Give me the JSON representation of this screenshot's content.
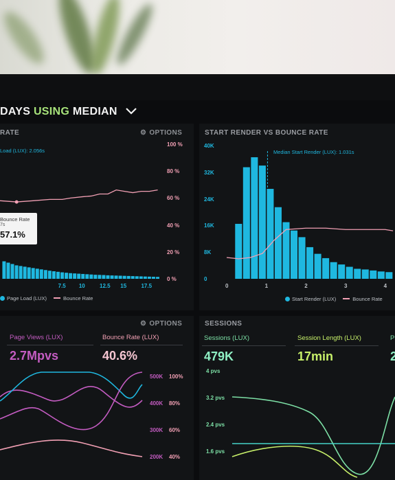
{
  "colors": {
    "blue": "#1fb8e0",
    "pink": "#f2a0b4",
    "purple": "#c45cc2",
    "green": "#7de0a6",
    "lime": "#c7f06a",
    "teal": "#45d4c8"
  },
  "header": {
    "title_part1": "DAYS",
    "title_part2": "USING",
    "title_part3": "MEDIAN",
    "chevron_icon": "chevron-down-icon"
  },
  "panel1": {
    "title": "RATE",
    "options": "OPTIONS",
    "options_icon": "gear-icon",
    "median_label": "Load (LUX): 2.056s",
    "tooltip": {
      "line1": "Bounce Rate",
      "line2": "7s",
      "value": "57.1%"
    },
    "right_axis": [
      "100 %",
      "80 %",
      "60 %",
      "40 %",
      "20 %",
      "0 %"
    ],
    "x_ticks": [
      "7.5",
      "10",
      "12.5",
      "15",
      "17.5"
    ],
    "legend": {
      "series1": "Page Load (LUX)",
      "series2": "Bounce Rate"
    }
  },
  "panel2": {
    "title": "START RENDER VS BOUNCE RATE",
    "median_label": "Median Start Render (LUX): 1.031s",
    "left_axis": [
      "40K",
      "32K",
      "24K",
      "16K",
      "8K",
      "0"
    ],
    "x_ticks": [
      "0",
      "1",
      "2",
      "3",
      "4"
    ],
    "legend": {
      "series1": "Start Render (LUX)",
      "series2": "Bounce Rate"
    }
  },
  "panel3": {
    "options": "OPTIONS",
    "options_icon": "gear-icon",
    "metric1": {
      "label": "Page Views (LUX)",
      "value": "2.7Mpvs"
    },
    "metric2": {
      "label": "Bounce Rate (LUX)",
      "value": "40.6%"
    },
    "axis_a": [
      "500K",
      "400K",
      "300K",
      "200K"
    ],
    "axis_b": [
      "100%",
      "80%",
      "60%",
      "40%"
    ]
  },
  "panel4": {
    "title": "SESSIONS",
    "metric1": {
      "label": "Sessions (LUX)",
      "value": "479K"
    },
    "metric2": {
      "label": "Session Length (LUX)",
      "value": "17min"
    },
    "metric3": {
      "label": "P",
      "value": "2"
    },
    "axis": [
      "4 pvs",
      "3.2 pvs",
      "2.4 pvs",
      "1.6 pvs"
    ]
  },
  "chart_data": [
    {
      "type": "bar",
      "series": [
        {
          "name": "Page Load (LUX)",
          "x": [
            0.5,
            1,
            1.5,
            2,
            2.5,
            3,
            3.5,
            4,
            4.5,
            5,
            5.5,
            6,
            6.5,
            7,
            7.5,
            8,
            8.5,
            9,
            9.5,
            10,
            10.5,
            11,
            11.5,
            12,
            12.5,
            13,
            13.5,
            14,
            14.5,
            15,
            15.5,
            16,
            16.5,
            17,
            17.5,
            18,
            18.5,
            19
          ],
          "values": [
            13,
            12,
            11,
            10,
            9.5,
            9,
            8.5,
            8,
            7.5,
            7,
            6.5,
            6,
            5.6,
            5.2,
            4.8,
            4.5,
            4.2,
            4,
            3.8,
            3.6,
            3.4,
            3.2,
            3,
            2.9,
            2.8,
            2.6,
            2.5,
            2.4,
            2.3,
            2.2,
            2.1,
            2,
            1.9,
            1.8,
            1.7,
            1.6,
            1.5,
            1.4
          ]
        },
        {
          "name": "Bounce Rate",
          "x": [
            0,
            2,
            4,
            6,
            7.5,
            8.5,
            10,
            11,
            12,
            13,
            14,
            15,
            16,
            17,
            18,
            19
          ],
          "values": [
            58,
            57.1,
            58,
            59,
            59,
            60,
            61,
            61.5,
            63,
            63,
            66,
            65,
            64,
            65,
            65,
            66
          ]
        }
      ],
      "ylim": [
        0,
        100
      ],
      "right_axis_unit": "%"
    },
    {
      "type": "bar",
      "series": [
        {
          "name": "Start Render (LUX)",
          "x": [
            0.3,
            0.5,
            0.7,
            0.9,
            1.1,
            1.3,
            1.5,
            1.7,
            1.9,
            2.1,
            2.3,
            2.5,
            2.7,
            2.9,
            3.1,
            3.3,
            3.5,
            3.7,
            3.9,
            4.1
          ],
          "values": [
            16500,
            33500,
            36500,
            34000,
            27000,
            21500,
            17000,
            14500,
            12500,
            9500,
            7500,
            6200,
            5000,
            4300,
            3600,
            3000,
            2800,
            2500,
            2200,
            2000
          ]
        },
        {
          "name": "Bounce Rate",
          "x": [
            0,
            0.3,
            0.6,
            0.9,
            1.2,
            1.5,
            2,
            2.5,
            3,
            3.5,
            4,
            4.2
          ],
          "values": [
            16,
            15,
            16,
            19,
            29,
            37,
            38,
            38,
            37,
            37,
            37,
            36
          ]
        }
      ],
      "ylim": [
        0,
        40000
      ]
    }
  ]
}
